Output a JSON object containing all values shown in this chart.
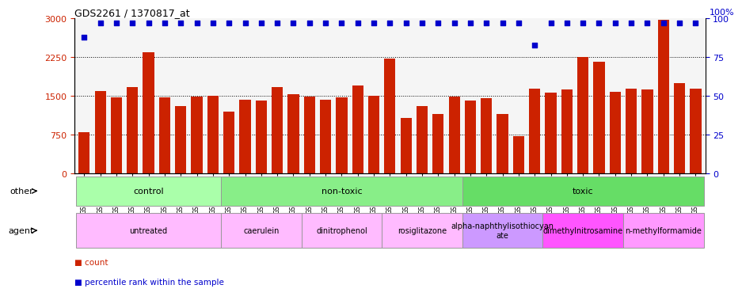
{
  "title": "GDS2261 / 1370817_at",
  "samples": [
    "GSM127079",
    "GSM127080",
    "GSM127081",
    "GSM127082",
    "GSM127083",
    "GSM127084",
    "GSM127085",
    "GSM127086",
    "GSM127087",
    "GSM127054",
    "GSM127055",
    "GSM127056",
    "GSM127057",
    "GSM127058",
    "GSM127064",
    "GSM127065",
    "GSM127066",
    "GSM127067",
    "GSM127068",
    "GSM127074",
    "GSM127075",
    "GSM127076",
    "GSM127077",
    "GSM127078",
    "GSM127049",
    "GSM127050",
    "GSM127051",
    "GSM127052",
    "GSM127053",
    "GSM127059",
    "GSM127060",
    "GSM127061",
    "GSM127062",
    "GSM127063",
    "GSM127069",
    "GSM127070",
    "GSM127071",
    "GSM127072",
    "GSM127073"
  ],
  "counts": [
    800,
    1600,
    1480,
    1680,
    2340,
    1480,
    1310,
    1490,
    1500,
    1200,
    1430,
    1420,
    1680,
    1530,
    1490,
    1430,
    1480,
    1700,
    1510,
    2220,
    1080,
    1310,
    1160,
    1490,
    1420,
    1460,
    1150,
    730,
    1640,
    1570,
    1620,
    2260,
    2170,
    1580,
    1640,
    1620,
    2970,
    1750,
    1640
  ],
  "percentile_ranks": [
    88,
    97,
    97,
    97,
    97,
    97,
    97,
    97,
    97,
    97,
    97,
    97,
    97,
    97,
    97,
    97,
    97,
    97,
    97,
    97,
    97,
    97,
    97,
    97,
    97,
    97,
    97,
    97,
    83,
    97,
    97,
    97,
    97,
    97,
    97,
    97,
    97,
    97,
    97
  ],
  "bar_color": "#cc2200",
  "dot_color": "#0000cc",
  "ylim_left": [
    0,
    3000
  ],
  "ylim_right": [
    0,
    100
  ],
  "yticks_left": [
    0,
    750,
    1500,
    2250,
    3000
  ],
  "yticks_right": [
    0,
    25,
    50,
    75,
    100
  ],
  "hgrid_lines": [
    750,
    1500,
    2250
  ],
  "bg_color": "#f5f5f5",
  "groups": [
    {
      "label": "control",
      "start": 0,
      "end": 9,
      "color": "#aaffaa"
    },
    {
      "label": "non-toxic",
      "start": 9,
      "end": 24,
      "color": "#88ee88"
    },
    {
      "label": "toxic",
      "start": 24,
      "end": 39,
      "color": "#66dd66"
    }
  ],
  "agents": [
    {
      "label": "untreated",
      "start": 0,
      "end": 9,
      "color": "#ffbbff"
    },
    {
      "label": "caerulein",
      "start": 9,
      "end": 14,
      "color": "#ffbbff"
    },
    {
      "label": "dinitrophenol",
      "start": 14,
      "end": 19,
      "color": "#ffbbff"
    },
    {
      "label": "rosiglitazone",
      "start": 19,
      "end": 24,
      "color": "#ffbbff"
    },
    {
      "label": "alpha-naphthylisothiocyan\nate",
      "start": 24,
      "end": 29,
      "color": "#cc99ff"
    },
    {
      "label": "dimethylnitrosamine",
      "start": 29,
      "end": 34,
      "color": "#ff55ff"
    },
    {
      "label": "n-methylformamide",
      "start": 34,
      "end": 39,
      "color": "#ff99ff"
    }
  ]
}
